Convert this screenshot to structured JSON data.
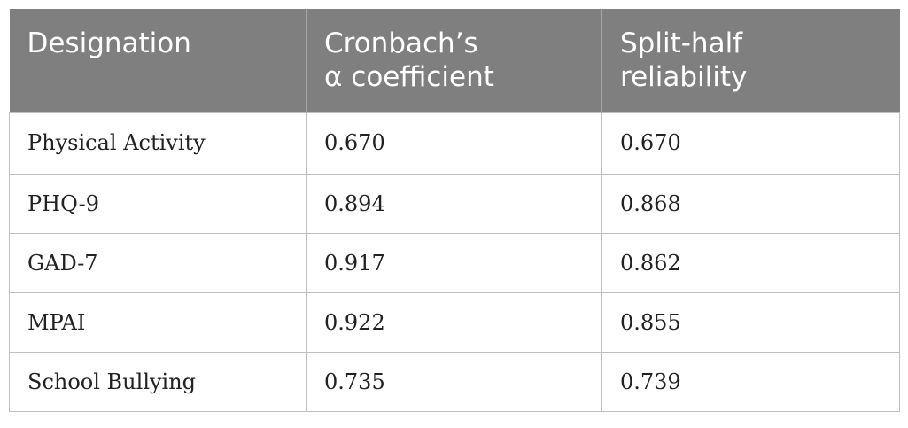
{
  "table": {
    "headers": [
      [
        "Designation"
      ],
      [
        "Cronbach’s",
        "α coefficient"
      ],
      [
        "Split-half",
        "reliability"
      ]
    ],
    "rows": [
      [
        "Physical Activity",
        "0.670",
        "0.670"
      ],
      [
        "PHQ-9",
        "0.894",
        "0.868"
      ],
      [
        "GAD-7",
        "0.917",
        "0.862"
      ],
      [
        "MPAI",
        "0.922",
        "0.855"
      ],
      [
        "School Bullying",
        "0.735",
        "0.739"
      ]
    ]
  }
}
